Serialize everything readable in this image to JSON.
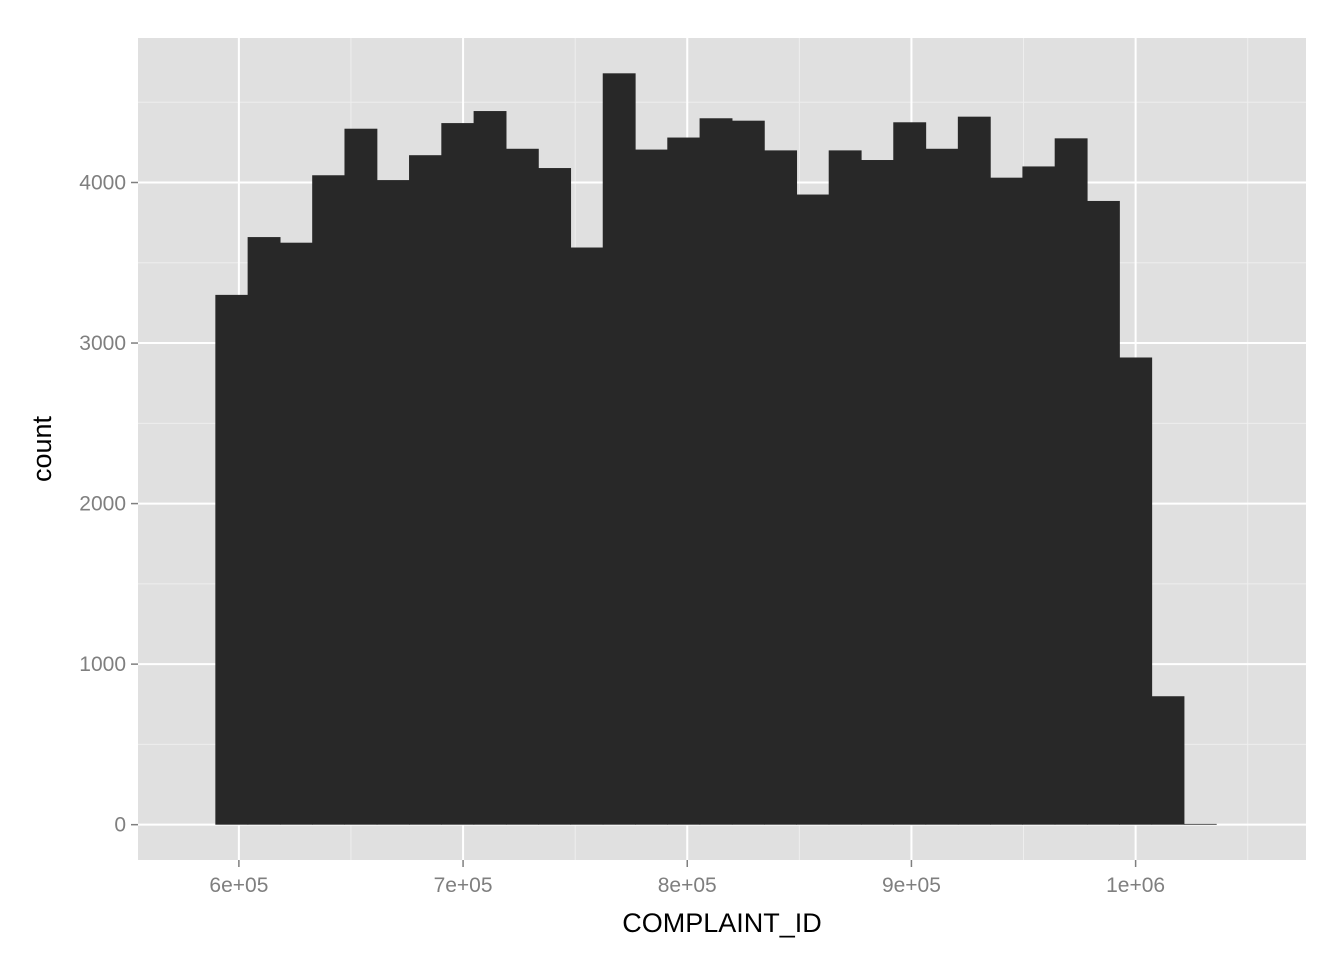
{
  "chart_data": {
    "type": "bar",
    "xlabel": "COMPLAINT_ID",
    "ylabel": "count",
    "xlim": [
      555000,
      1076000
    ],
    "ylim": [
      -220,
      4900
    ],
    "x_ticks": [
      {
        "value": 600000,
        "label": "6e+05"
      },
      {
        "value": 700000,
        "label": "7e+05"
      },
      {
        "value": 800000,
        "label": "8e+05"
      },
      {
        "value": 900000,
        "label": "9e+05"
      },
      {
        "value": 1000000,
        "label": "1e+06"
      }
    ],
    "y_ticks": [
      {
        "value": 0,
        "label": "0"
      },
      {
        "value": 1000,
        "label": "1000"
      },
      {
        "value": 2000,
        "label": "2000"
      },
      {
        "value": 3000,
        "label": "3000"
      },
      {
        "value": 4000,
        "label": "4000"
      }
    ],
    "bin_width": 14400,
    "bin_start": 589500,
    "counts": [
      3300,
      3660,
      3625,
      4045,
      4335,
      4015,
      4170,
      4370,
      4445,
      4210,
      4090,
      3595,
      4680,
      4205,
      4280,
      4400,
      4385,
      4200,
      3925,
      4200,
      4140,
      4375,
      4210,
      4410,
      4030,
      4100,
      4275,
      3885,
      2910,
      800,
      5
    ],
    "grid": true,
    "colors": {
      "panel": "#e0e0e0",
      "grid_major": "#ffffff",
      "grid_minor": "#eeeeee",
      "bar_fill": "#282828"
    }
  }
}
